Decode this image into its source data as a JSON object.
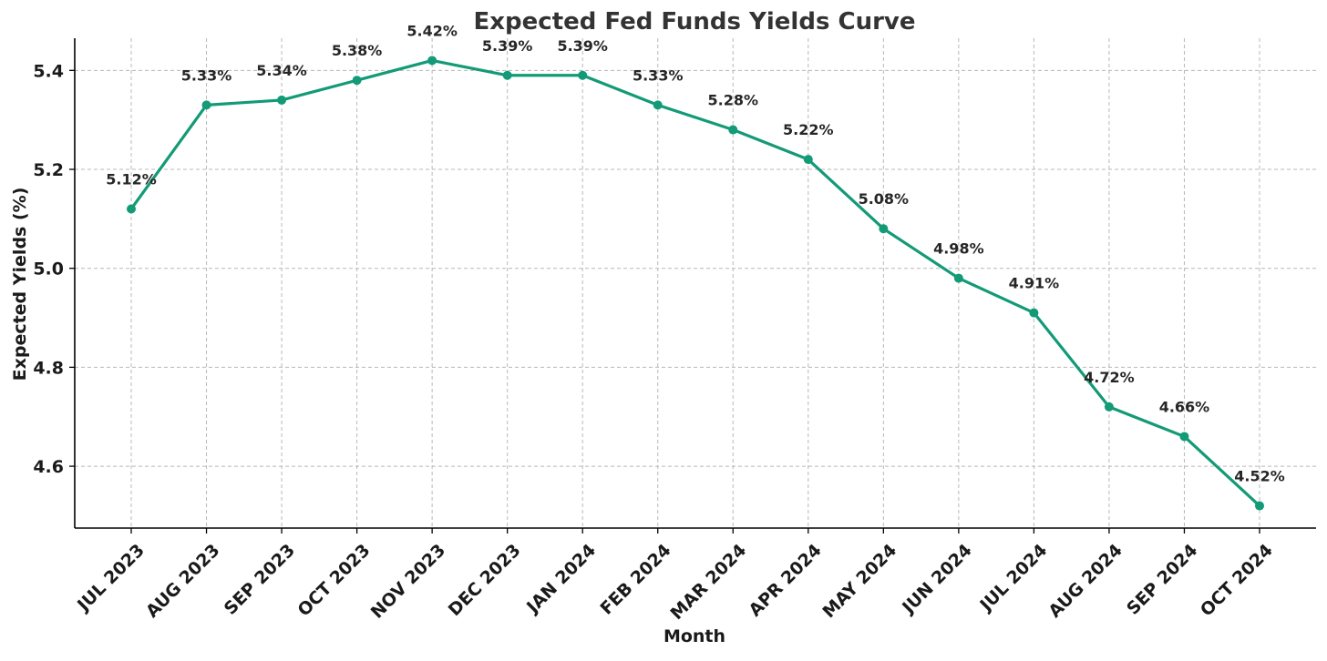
{
  "chart_data": {
    "type": "line",
    "title": "Expected Fed Funds Yields Curve",
    "xlabel": "Month",
    "ylabel": "Expected Yields (%)",
    "categories": [
      "JUL 2023",
      "AUG 2023",
      "SEP 2023",
      "OCT 2023",
      "NOV 2023",
      "DEC 2023",
      "JAN 2024",
      "FEB 2024",
      "MAR 2024",
      "APR 2024",
      "MAY 2024",
      "JUN 2024",
      "JUL 2024",
      "AUG 2024",
      "SEP 2024",
      "OCT 2024"
    ],
    "series": [
      {
        "values": [
          5.12,
          5.33,
          5.34,
          5.38,
          5.42,
          5.39,
          5.39,
          5.33,
          5.28,
          5.22,
          5.08,
          4.98,
          4.91,
          4.72,
          4.66,
          4.52
        ],
        "color": "#139a76"
      }
    ],
    "data_labels": [
      "5.12%",
      "5.33%",
      "5.34%",
      "5.38%",
      "5.42%",
      "5.39%",
      "5.39%",
      "5.33%",
      "5.28%",
      "5.22%",
      "5.08%",
      "4.98%",
      "4.91%",
      "4.72%",
      "4.66%",
      "4.52%"
    ],
    "yticks": [
      4.6,
      4.8,
      5.0,
      5.2,
      5.4
    ],
    "ytick_labels": [
      "4.6",
      "4.8",
      "5.0",
      "5.2",
      "5.4"
    ],
    "ylim": [
      4.475,
      5.465
    ],
    "grid": true,
    "marker": "circle"
  }
}
